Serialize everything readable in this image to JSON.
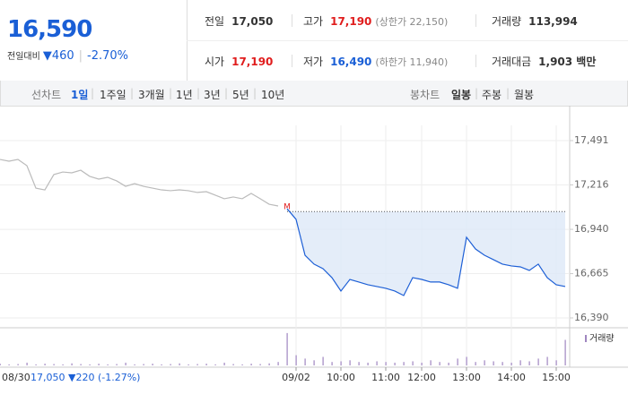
{
  "quote": {
    "price": "16,590",
    "change_label": "전일대비",
    "change": "460",
    "change_pct": "-2.70%"
  },
  "stats": [
    {
      "label": "전일",
      "value": "17,050"
    },
    {
      "label": "고가",
      "value": "17,190",
      "note": "(상한가 22,150)"
    },
    {
      "label": "거래량",
      "value": "113,994"
    },
    {
      "label": "시가",
      "value": "17,190"
    },
    {
      "label": "저가",
      "value": "16,490",
      "note": "(하한가 11,940)"
    },
    {
      "label": "거래대금",
      "value": "1,903 백만"
    }
  ],
  "tabs": {
    "line_label": "선차트",
    "line": [
      "1일",
      "1주일",
      "3개월",
      "1년",
      "3년",
      "5년",
      "10년"
    ],
    "candle_label": "봉차트",
    "candle": [
      "일봉",
      "주봉",
      "월봉"
    ]
  },
  "chart_data": {
    "type": "line",
    "categories": [
      null,
      null,
      null,
      null,
      null,
      null,
      null,
      null,
      null,
      null,
      null,
      null,
      null,
      null,
      null,
      null,
      null,
      null,
      null,
      null,
      null,
      null,
      null,
      null,
      null,
      null,
      null,
      null,
      null,
      null,
      null,
      null,
      null,
      "09/02",
      null,
      null,
      null,
      null,
      "10:00",
      null,
      null,
      null,
      null,
      "11:00",
      null,
      null,
      null,
      "12:00",
      null,
      null,
      null,
      null,
      "13:00",
      null,
      null,
      null,
      null,
      "14:00",
      null,
      null,
      null,
      null,
      "15:00",
      null
    ],
    "series": [
      {
        "color": "#bbbbbb",
        "values": [
          17374,
          17363,
          17374,
          17335,
          17196,
          17185,
          17280,
          17296,
          17291,
          17307,
          17269,
          17252,
          17263,
          17241,
          17207,
          17224,
          17207,
          17196,
          17185,
          17180,
          17185,
          17180,
          17169,
          17174,
          17152,
          17130,
          17141,
          17130,
          17163,
          17130,
          17096,
          17085,
          null,
          null,
          null,
          null,
          null,
          null,
          null,
          null,
          null,
          null,
          null,
          null,
          null,
          null,
          null,
          null,
          null,
          null,
          null,
          null,
          null,
          null,
          null,
          null,
          null,
          null,
          null,
          null,
          null,
          null,
          null,
          null
        ]
      },
      {
        "color": "#1d5fd6",
        "values": [
          null,
          null,
          null,
          null,
          null,
          null,
          null,
          null,
          null,
          null,
          null,
          null,
          null,
          null,
          null,
          null,
          null,
          null,
          null,
          null,
          null,
          null,
          null,
          null,
          null,
          null,
          null,
          null,
          null,
          null,
          null,
          null,
          17068,
          17002,
          16779,
          16724,
          16696,
          16640,
          16557,
          16629,
          16613,
          16596,
          16585,
          16574,
          16557,
          16529,
          16640,
          16629,
          16613,
          16613,
          16596,
          16574,
          16891,
          16818,
          16779,
          16752,
          16724,
          16713,
          16707,
          16685,
          16724,
          16640,
          16596,
          16585
        ]
      }
    ],
    "baseline": 17050,
    "area_color": "#dde8f8",
    "marker": "M",
    "ylim": [
      16390,
      17491
    ],
    "yticks": [
      {
        "value": 17491,
        "label": "17,491"
      },
      {
        "value": 17216,
        "label": "17,216"
      },
      {
        "value": 16940,
        "label": "16,940"
      },
      {
        "value": 16665,
        "label": "16,665"
      },
      {
        "value": 16390,
        "label": "16,390"
      }
    ],
    "grid": true,
    "volume": {
      "name": "거래량",
      "color": "#9f86c0",
      "ylim": [
        0,
        100
      ],
      "values": [
        5,
        3,
        4,
        8,
        3,
        5,
        4,
        3,
        6,
        4,
        3,
        5,
        3,
        4,
        8,
        3,
        4,
        5,
        3,
        4,
        6,
        3,
        4,
        5,
        3,
        8,
        4,
        3,
        5,
        4,
        6,
        10,
        95,
        30,
        20,
        15,
        25,
        10,
        12,
        15,
        10,
        8,
        12,
        10,
        8,
        10,
        12,
        8,
        15,
        10,
        8,
        20,
        25,
        10,
        15,
        12,
        10,
        8,
        15,
        12,
        20,
        25,
        15,
        75
      ]
    },
    "footer": {
      "date": "08/30",
      "close": "17,050",
      "change": "▼220 (-1.27%)"
    }
  }
}
